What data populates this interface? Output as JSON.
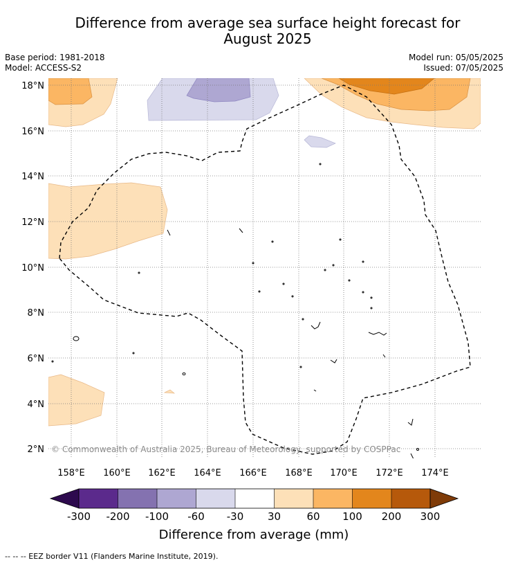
{
  "header": {
    "title_line1": "Difference from average sea surface height forecast for",
    "title_line2": "August 2025",
    "base_period": "Base period: 1981-2018",
    "model": "Model: ACCESS-S2",
    "model_run": "Model run: 05/05/2025",
    "issued": "Issued: 07/05/2025"
  },
  "map": {
    "lat_ticks": [
      "18°N",
      "16°N",
      "14°N",
      "12°N",
      "10°N",
      "8°N",
      "6°N",
      "4°N",
      "2°N"
    ],
    "lon_ticks": [
      "158°E",
      "160°E",
      "162°E",
      "164°E",
      "166°E",
      "168°E",
      "170°E",
      "172°E",
      "174°E"
    ],
    "copyright": "© Commonwealth of Australia 2025, Bureau of Meteorology, supported by COSPPac",
    "gridlines": true,
    "border": "dashed EEZ boundary"
  },
  "colorbar": {
    "label": "Difference from average (mm)",
    "ticks": [
      "-300",
      "-200",
      "-100",
      "-60",
      "-30",
      "30",
      "60",
      "100",
      "200",
      "300"
    ],
    "colors": [
      "#2d0a4e",
      "#5b2a8c",
      "#8472b0",
      "#aea7d2",
      "#d9d9ec",
      "#ffffff",
      "#fde0b8",
      "#fbb663",
      "#e3861c",
      "#b6590b",
      "#7f3b08"
    ]
  },
  "legend": {
    "footer": "--  --  -- EEZ border V11 (Flanders Marine Institute, 2019)."
  }
}
